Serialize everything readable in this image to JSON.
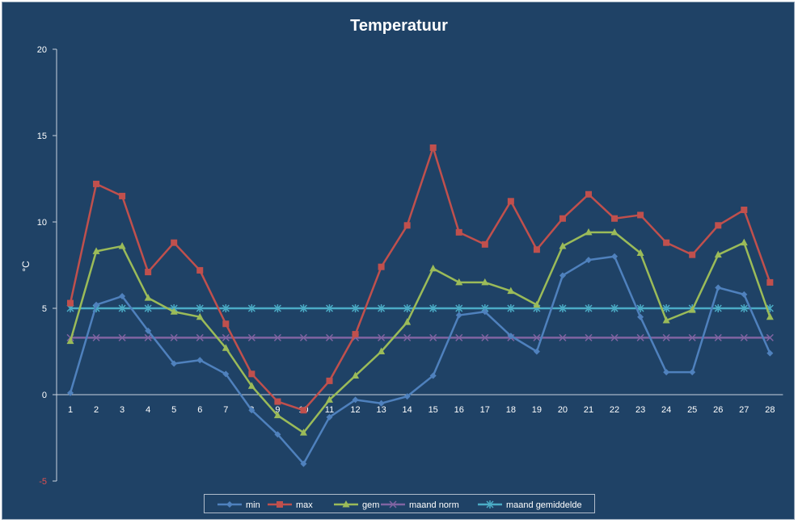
{
  "chart_data": {
    "type": "line",
    "title": "Temperatuur",
    "xlabel": "",
    "ylabel": "°C",
    "ylim": [
      -5,
      20
    ],
    "yticks": [
      "20",
      "15",
      "10",
      "5",
      "0",
      "-5"
    ],
    "x": [
      1,
      2,
      3,
      4,
      5,
      6,
      7,
      8,
      9,
      10,
      11,
      12,
      13,
      14,
      15,
      16,
      17,
      18,
      19,
      20,
      21,
      22,
      23,
      24,
      25,
      26,
      27,
      28
    ],
    "grid": false,
    "legend_position": "bottom",
    "series": [
      {
        "name": "min",
        "color": "#4f81bd",
        "marker": "diamond",
        "values": [
          0.1,
          5.2,
          5.7,
          3.7,
          1.8,
          2.0,
          1.2,
          -0.9,
          -2.3,
          -4.0,
          -1.3,
          -0.3,
          -0.5,
          -0.1,
          1.1,
          4.6,
          4.8,
          3.4,
          2.5,
          6.9,
          7.8,
          8.0,
          4.5,
          1.3,
          1.3,
          6.2,
          5.8,
          2.4
        ]
      },
      {
        "name": "max",
        "color": "#c0504d",
        "marker": "square",
        "values": [
          5.3,
          12.2,
          11.5,
          7.1,
          8.8,
          7.2,
          4.1,
          1.2,
          -0.4,
          -0.9,
          0.8,
          3.5,
          7.4,
          9.8,
          14.3,
          9.4,
          8.7,
          11.2,
          8.4,
          10.2,
          11.6,
          10.2,
          10.4,
          8.8,
          8.1,
          9.8,
          10.7,
          6.5
        ]
      },
      {
        "name": "gem",
        "color": "#9bbb59",
        "marker": "triangle",
        "values": [
          3.1,
          8.3,
          8.6,
          5.6,
          4.8,
          4.5,
          2.7,
          0.5,
          -1.2,
          -2.2,
          -0.3,
          1.1,
          2.5,
          4.2,
          7.3,
          6.5,
          6.5,
          6.0,
          5.2,
          8.6,
          9.4,
          9.4,
          8.2,
          4.3,
          4.9,
          8.1,
          8.8,
          4.5
        ]
      },
      {
        "name": "maand norm",
        "color": "#8064a2",
        "marker": "x",
        "values": [
          3.3,
          3.3,
          3.3,
          3.3,
          3.3,
          3.3,
          3.3,
          3.3,
          3.3,
          3.3,
          3.3,
          3.3,
          3.3,
          3.3,
          3.3,
          3.3,
          3.3,
          3.3,
          3.3,
          3.3,
          3.3,
          3.3,
          3.3,
          3.3,
          3.3,
          3.3,
          3.3,
          3.3
        ]
      },
      {
        "name": "maand gemiddelde",
        "color": "#4bacc6",
        "marker": "star",
        "values": [
          5.0,
          5.0,
          5.0,
          5.0,
          5.0,
          5.0,
          5.0,
          5.0,
          5.0,
          5.0,
          5.0,
          5.0,
          5.0,
          5.0,
          5.0,
          5.0,
          5.0,
          5.0,
          5.0,
          5.0,
          5.0,
          5.0,
          5.0,
          5.0,
          5.0,
          5.0,
          5.0,
          5.0
        ]
      }
    ]
  }
}
